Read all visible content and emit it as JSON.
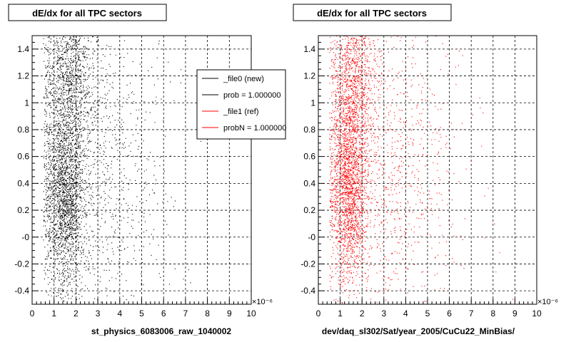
{
  "chart_data": [
    {
      "type": "scatter",
      "title": "dE/dx for all TPC sectors",
      "xlabel": "st_physics_6083006_raw_1040002",
      "x_exponent_label": "×10⁻⁶",
      "xlim": [
        0,
        10
      ],
      "ylim": [
        -0.5,
        1.5
      ],
      "grid": true,
      "xticks": [
        "0",
        "1",
        "2",
        "3",
        "4",
        "5",
        "6",
        "7",
        "8",
        "9",
        "10"
      ],
      "yticks": [
        "-0.4",
        "-0.2",
        "-0",
        "0.2",
        "0.4",
        "0.6",
        "0.8",
        "1",
        "1.2",
        "1.4"
      ],
      "series": [
        {
          "name": "_file0 (new)",
          "color": "#000000",
          "density_clusters": [
            {
              "x_center": 1.5,
              "y_center": 0.3,
              "x_spread": 0.45,
              "y_spread": 0.35,
              "weight": 0.45
            },
            {
              "x_center": 1.7,
              "y_center": 1.2,
              "x_spread": 0.55,
              "y_spread": 0.35,
              "weight": 0.3
            },
            {
              "x_center": 2.8,
              "y_center": 0.5,
              "x_spread": 1.6,
              "y_spread": 0.6,
              "weight": 0.25
            }
          ]
        }
      ],
      "legend": {
        "position": "top-right",
        "entries": [
          {
            "label": "_file0 (new)",
            "color": "#000000"
          },
          {
            "label": "prob = 1.000000",
            "color": "#000000"
          },
          {
            "label": "_file1 (ref)",
            "color": "#ff0000"
          },
          {
            "label": "probN = 1.000000",
            "color": "#ff0000"
          }
        ]
      }
    },
    {
      "type": "scatter",
      "title": "dE/dx for all TPC sectors",
      "xlabel": "dev/daq_sl302/Sat/year_2005/CuCu22_MinBias/",
      "x_exponent_label": "×10⁻⁶",
      "xlim": [
        0,
        10
      ],
      "ylim": [
        -0.5,
        1.5
      ],
      "grid": true,
      "xticks": [
        "0",
        "1",
        "2",
        "3",
        "4",
        "5",
        "6",
        "7",
        "8",
        "9",
        "10"
      ],
      "yticks": [
        "-0.4",
        "-0.2",
        "-0",
        "0.2",
        "0.4",
        "0.6",
        "0.8",
        "1",
        "1.2",
        "1.4"
      ],
      "series": [
        {
          "name": "_file1 (ref)",
          "color": "#ff0000",
          "density_clusters": [
            {
              "x_center": 1.4,
              "y_center": 0.35,
              "x_spread": 0.4,
              "y_spread": 0.35,
              "weight": 0.45
            },
            {
              "x_center": 1.6,
              "y_center": 1.2,
              "x_spread": 0.5,
              "y_spread": 0.35,
              "weight": 0.3
            },
            {
              "x_center": 3.0,
              "y_center": 0.5,
              "x_spread": 1.8,
              "y_spread": 0.6,
              "weight": 0.25
            }
          ]
        }
      ]
    }
  ]
}
